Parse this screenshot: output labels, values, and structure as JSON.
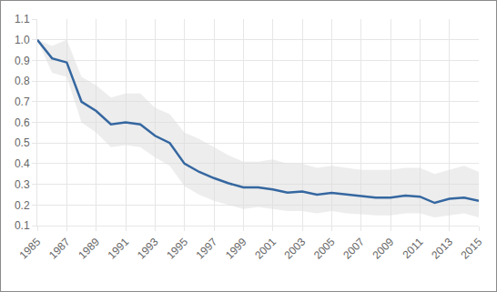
{
  "chart_data": {
    "type": "line",
    "x": [
      1985,
      1986,
      1987,
      1988,
      1989,
      1990,
      1991,
      1992,
      1993,
      1994,
      1995,
      1996,
      1997,
      1998,
      1999,
      2000,
      2001,
      2002,
      2003,
      2004,
      2005,
      2006,
      2007,
      2008,
      2009,
      2010,
      2011,
      2012,
      2013,
      2014,
      2015
    ],
    "values": [
      1.0,
      0.91,
      0.89,
      0.7,
      0.655,
      0.59,
      0.6,
      0.59,
      0.535,
      0.5,
      0.4,
      0.36,
      0.33,
      0.305,
      0.285,
      0.285,
      0.275,
      0.26,
      0.265,
      0.25,
      0.258,
      0.25,
      0.24,
      0.235,
      0.235,
      0.245,
      0.24,
      0.21,
      0.23,
      0.235,
      0.22
    ],
    "lower": [
      1.0,
      0.84,
      0.82,
      0.6,
      0.55,
      0.48,
      0.49,
      0.48,
      0.43,
      0.39,
      0.29,
      0.25,
      0.22,
      0.2,
      0.18,
      0.19,
      0.18,
      0.17,
      0.17,
      0.16,
      0.17,
      0.16,
      0.155,
      0.15,
      0.15,
      0.16,
      0.16,
      0.14,
      0.15,
      0.16,
      0.14
    ],
    "upper": [
      1.0,
      0.97,
      1.0,
      0.82,
      0.78,
      0.72,
      0.74,
      0.74,
      0.67,
      0.64,
      0.55,
      0.52,
      0.48,
      0.44,
      0.41,
      0.41,
      0.42,
      0.4,
      0.4,
      0.38,
      0.39,
      0.38,
      0.37,
      0.37,
      0.37,
      0.38,
      0.38,
      0.35,
      0.37,
      0.39,
      0.36
    ],
    "color": "#3567a0",
    "xlim": [
      1985,
      2015
    ],
    "xticks": [
      1985,
      1987,
      1989,
      1991,
      1993,
      1995,
      1997,
      1999,
      2001,
      2003,
      2005,
      2007,
      2009,
      2011,
      2013,
      2015
    ],
    "ylim": [
      0.1,
      1.1
    ],
    "yticks": [
      0.1,
      0.2,
      0.3,
      0.4,
      0.5,
      0.6,
      0.7,
      0.8,
      0.9,
      {
        "value": 1,
        "label": "1.0"
      },
      1.1
    ],
    "grid": true
  }
}
